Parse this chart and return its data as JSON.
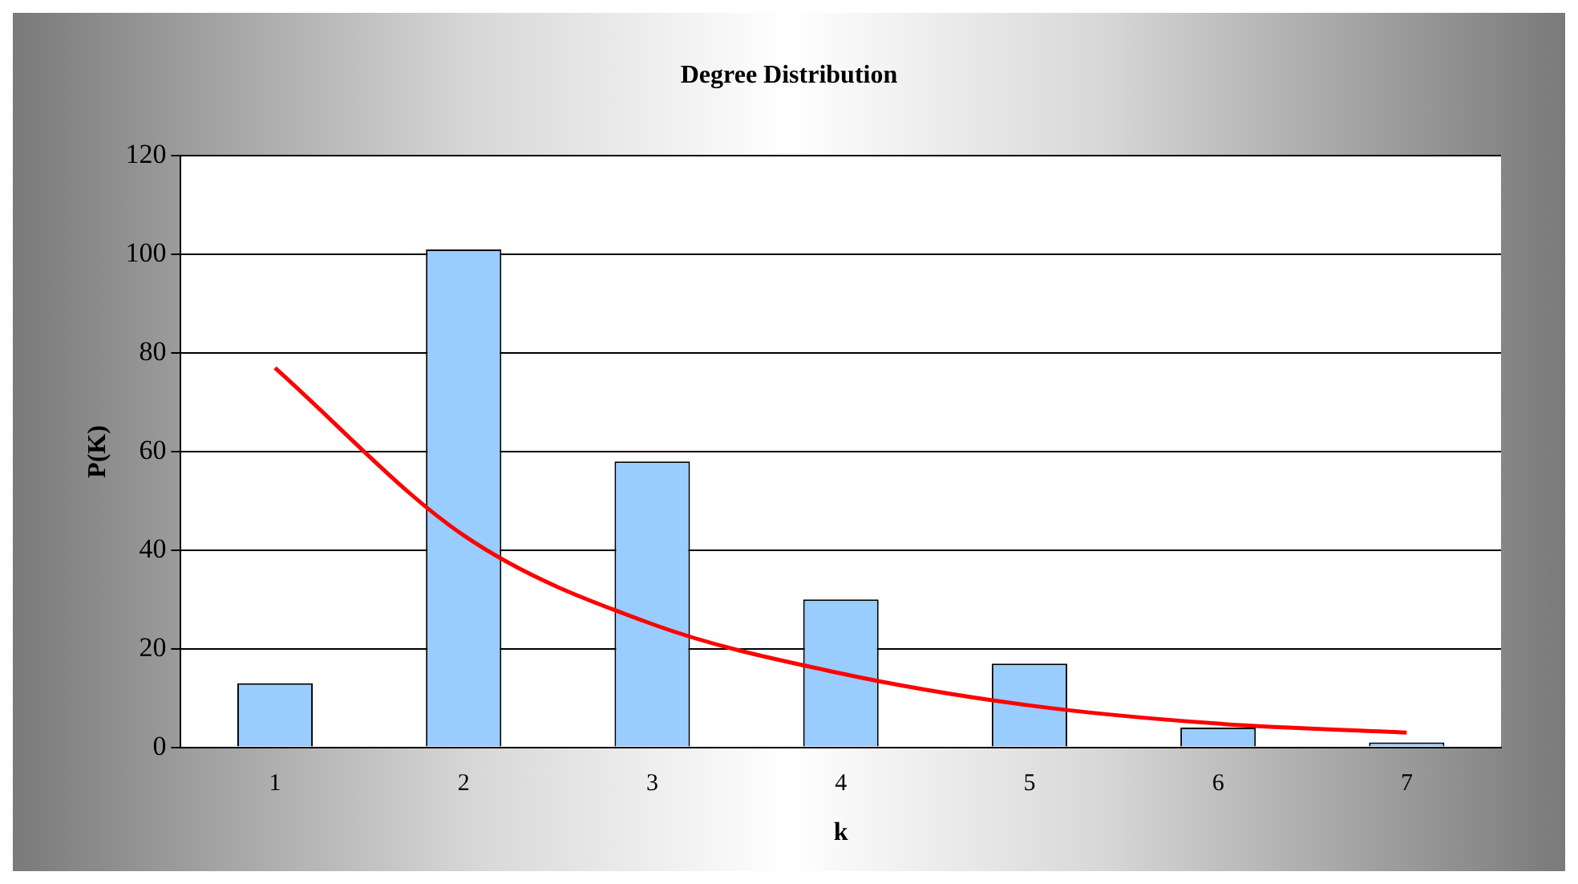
{
  "chart_data": {
    "type": "bar",
    "title": "Degree Distribution",
    "xlabel": "k",
    "ylabel": "P(K)",
    "categories": [
      "1",
      "2",
      "3",
      "4",
      "5",
      "6",
      "7"
    ],
    "series": [
      {
        "color": "#99ccff",
        "values": [
          13,
          101,
          58,
          30,
          17,
          4,
          1
        ]
      },
      {
        "type": "line",
        "color": "#ff0000",
        "values": [
          77,
          43,
          25,
          15,
          8.5,
          4.8,
          3
        ]
      }
    ],
    "ylim": [
      0,
      120
    ],
    "yticks": [
      0,
      20,
      40,
      60,
      80,
      100,
      120
    ],
    "grid": "y",
    "legend": false,
    "marker": "none"
  }
}
